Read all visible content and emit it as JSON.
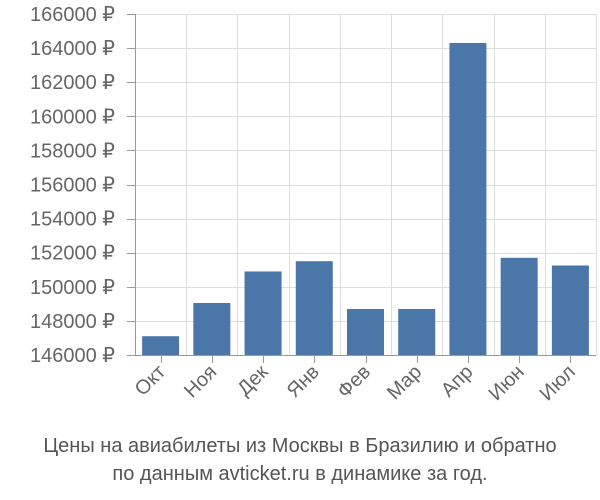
{
  "chart_data": {
    "type": "bar",
    "categories": [
      "Окт",
      "Ноя",
      "Дек",
      "Янв",
      "Фев",
      "Мар",
      "Апр",
      "Июн",
      "Июл"
    ],
    "values": [
      147100,
      149050,
      150900,
      151500,
      148700,
      148700,
      164300,
      151700,
      151250
    ],
    "ylim": [
      146000,
      166000
    ],
    "yticks": [
      146000,
      148000,
      150000,
      152000,
      154000,
      156000,
      158000,
      160000,
      162000,
      164000,
      166000
    ],
    "ytick_suffix": " ₽",
    "grid": true,
    "bar_color": "#4a76a8",
    "grid_color": "#dddddd"
  },
  "caption": {
    "line1": "Цены на авиабилеты из Москвы в Бразилию и обратно",
    "line2": "по данным avticket.ru в динамике за год."
  }
}
